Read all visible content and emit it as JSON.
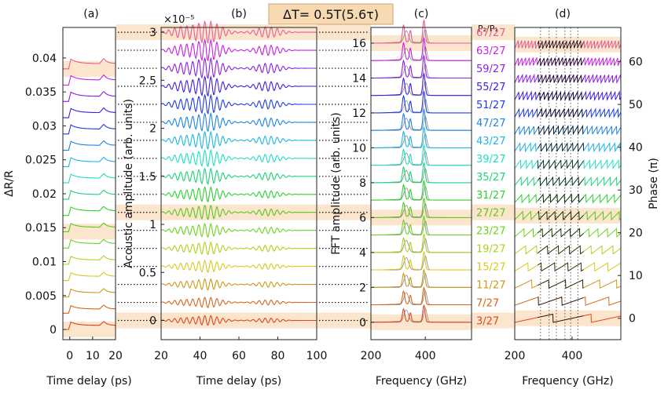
{
  "header": {
    "delta_t": "ΔT= 0.5T(5.6τ)",
    "ratio_header": "P₂/P₁"
  },
  "chart_data": [
    {
      "type": "line",
      "panel": "(a)",
      "xlabel": "Time delay (ps)",
      "ylabel": "ΔR/R",
      "xlim": [
        -3,
        20
      ],
      "ylim": [
        -0.0015,
        0.0445
      ],
      "xticks": [
        "0",
        "10",
        "20"
      ],
      "yticks": [
        {
          "v": 0,
          "label": "0"
        },
        {
          "v": 0.005,
          "label": "0.005"
        },
        {
          "v": 0.01,
          "label": "0.01"
        },
        {
          "v": 0.015,
          "label": "0.015"
        },
        {
          "v": 0.02,
          "label": "0.02"
        },
        {
          "v": 0.025,
          "label": "0.025"
        },
        {
          "v": 0.03,
          "label": "0.03"
        },
        {
          "v": 0.035,
          "label": "0.035"
        },
        {
          "v": 0.04,
          "label": "0.04"
        }
      ],
      "trace_spacing": 0.0024,
      "highlighted_traces": [
        0,
        6,
        16
      ]
    },
    {
      "type": "line",
      "panel": "(b)",
      "xlabel": "Time delay (ps)",
      "ylabel": "Acoustic amplitude (arb. units)",
      "scale_label": "×10⁻⁵",
      "xlim": [
        20,
        100
      ],
      "ylim": [
        -0.2,
        3.05
      ],
      "xticks": [
        "20",
        "40",
        "60",
        "80",
        "100"
      ],
      "yticks": [
        {
          "v": 0,
          "label": "0"
        },
        {
          "v": 0.5,
          "label": "0.5"
        },
        {
          "v": 1,
          "label": "1"
        },
        {
          "v": 1.5,
          "label": "1.5"
        },
        {
          "v": 2,
          "label": "2"
        },
        {
          "v": 2.5,
          "label": "2.5"
        },
        {
          "v": 3,
          "label": "3"
        }
      ],
      "trace_spacing": 0.1875,
      "highlighted_traces": [
        0,
        6,
        16
      ]
    },
    {
      "type": "line",
      "panel": "(c)",
      "xlabel": "Frequency (GHz)",
      "ylabel": "FFT amplitude (arb. units)",
      "xlim": [
        200,
        570
      ],
      "ylim": [
        -1,
        16.9
      ],
      "xticks": [
        "200",
        "400"
      ],
      "yticks": [
        {
          "v": 0,
          "label": "0"
        },
        {
          "v": 2,
          "label": "2"
        },
        {
          "v": 4,
          "label": "4"
        },
        {
          "v": 6,
          "label": "6"
        },
        {
          "v": 8,
          "label": "8"
        },
        {
          "v": 10,
          "label": "10"
        },
        {
          "v": 12,
          "label": "12"
        },
        {
          "v": 14,
          "label": "14"
        },
        {
          "v": 16,
          "label": "16"
        }
      ],
      "trace_spacing": 1,
      "peak_frequencies_ghz": [
        320,
        345,
        395
      ],
      "reference_curve": "gray",
      "highlighted_traces": [
        0,
        6,
        16
      ]
    },
    {
      "type": "line",
      "panel": "(d)",
      "xlabel": "Frequency (GHz)",
      "ylabel": "Phase (π)",
      "xlim": [
        200,
        570
      ],
      "ylim": [
        -5,
        68
      ],
      "xticks": [
        "200",
        "400"
      ],
      "yticks": [
        {
          "v": 0,
          "label": "0"
        },
        {
          "v": 10,
          "label": "10"
        },
        {
          "v": 20,
          "label": "20"
        },
        {
          "v": 30,
          "label": "30"
        },
        {
          "v": 40,
          "label": "40"
        },
        {
          "v": 50,
          "label": "50"
        },
        {
          "v": 60,
          "label": "60"
        }
      ],
      "trace_spacing": 4,
      "vertical_lines_ghz": [
        290,
        320,
        345,
        375,
        395,
        420
      ],
      "highlighted_traces": [
        0,
        6,
        16
      ]
    }
  ],
  "series": [
    {
      "name": "3/27",
      "color": "#e0461e"
    },
    {
      "name": "7/27",
      "color": "#d9651a"
    },
    {
      "name": "11/27",
      "color": "#c89a1a"
    },
    {
      "name": "15/27",
      "color": "#d8c81e"
    },
    {
      "name": "19/27",
      "color": "#aed21e"
    },
    {
      "name": "23/27",
      "color": "#6fd21e"
    },
    {
      "name": "27/27",
      "color": "#5ac81e"
    },
    {
      "name": "31/27",
      "color": "#2ad22e"
    },
    {
      "name": "35/27",
      "color": "#1ed27a"
    },
    {
      "name": "39/27",
      "color": "#1ee0c0"
    },
    {
      "name": "43/27",
      "color": "#1eb4e6"
    },
    {
      "name": "47/27",
      "color": "#1e82e6"
    },
    {
      "name": "51/27",
      "color": "#1e3ce6"
    },
    {
      "name": "55/27",
      "color": "#3c1ee6"
    },
    {
      "name": "59/27",
      "color": "#8c1ee6"
    },
    {
      "name": "63/27",
      "color": "#c81ee6"
    },
    {
      "name": "67/27",
      "color": "#e65a96"
    }
  ],
  "colors": {
    "highlight_band": "#fbe5cc",
    "reference_gray": "#888888"
  }
}
